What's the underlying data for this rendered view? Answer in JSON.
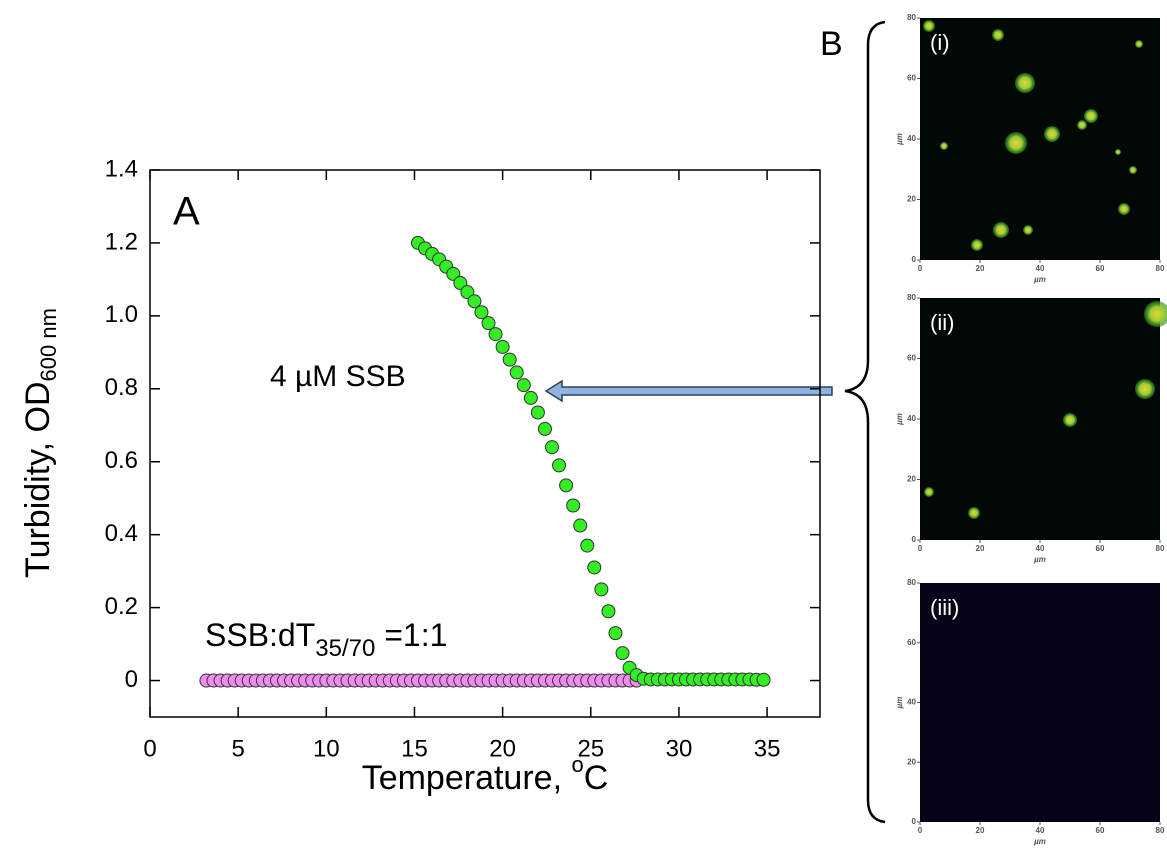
{
  "chart_data": [
    {
      "type": "scatter",
      "panel_label": "A",
      "xlabel": {
        "text": "Temperature, ",
        "sup": "o",
        "unit": "C"
      },
      "ylabel": {
        "text": "Turbidity, OD",
        "sub": "600 nm"
      },
      "annotations": [
        {
          "text": "4 µM SSB"
        },
        {
          "text": "SSB:dT",
          "sub": "35/70",
          "tail": " =1:1"
        }
      ],
      "xlim": [
        0,
        38
      ],
      "ylim": [
        -0.1,
        1.4
      ],
      "xticks": [
        0,
        5,
        10,
        15,
        20,
        25,
        30,
        35
      ],
      "yticks": [
        {
          "value": 0,
          "label": "0"
        },
        {
          "value": 0.2,
          "label": "0.2"
        },
        {
          "value": 0.4,
          "label": "0.4"
        },
        {
          "value": 0.6,
          "label": "0.6"
        },
        {
          "value": 0.8,
          "label": "0.8"
        },
        {
          "value": 1.0,
          "label": "1.0"
        },
        {
          "value": 1.2,
          "label": "1.2"
        },
        {
          "value": 1.4,
          "label": "1.4"
        }
      ],
      "series": [
        {
          "color": "#f08cf0",
          "x": [
            3.2,
            3.6,
            4.0,
            4.4,
            4.8,
            5.2,
            5.6,
            6.0,
            6.4,
            6.8,
            7.2,
            7.6,
            8.0,
            8.4,
            8.8,
            9.2,
            9.6,
            10.0,
            10.4,
            10.8,
            11.2,
            11.6,
            12.0,
            12.4,
            12.8,
            13.2,
            13.6,
            14.0,
            14.4,
            14.8,
            15.2,
            15.6,
            16.0,
            16.4,
            16.8,
            17.2,
            17.6,
            18.0,
            18.4,
            18.8,
            19.2,
            19.6,
            20.0,
            20.4,
            20.8,
            21.2,
            21.6,
            22.0,
            22.4,
            22.8,
            23.2,
            23.6,
            24.0,
            24.4,
            24.8,
            25.2,
            25.6,
            26.0,
            26.4,
            26.8,
            27.2,
            27.6
          ],
          "values": [
            0,
            0,
            0,
            0,
            0,
            0,
            0,
            0,
            0,
            0,
            0,
            0,
            0,
            0,
            0,
            0,
            0,
            0,
            0,
            0,
            0,
            0,
            0,
            0,
            0,
            0,
            0,
            0,
            0,
            0,
            0,
            0,
            0,
            0,
            0,
            0,
            0,
            0,
            0,
            0,
            0,
            0,
            0,
            0,
            0,
            0,
            0,
            0,
            0,
            0,
            0,
            0,
            0,
            0,
            0,
            0,
            0,
            0,
            0,
            0,
            0,
            0
          ]
        },
        {
          "color": "#33ee22",
          "x": [
            15.2,
            15.6,
            16.0,
            16.4,
            16.8,
            17.2,
            17.6,
            18.0,
            18.4,
            18.8,
            19.2,
            19.6,
            20.0,
            20.4,
            20.8,
            21.2,
            21.6,
            22.0,
            22.4,
            22.8,
            23.2,
            23.6,
            24.0,
            24.4,
            24.8,
            25.2,
            25.6,
            26.0,
            26.4,
            26.8,
            27.2,
            27.6,
            28.0,
            28.4,
            28.8,
            29.2,
            29.6,
            30.0,
            30.4,
            30.8,
            31.2,
            31.6,
            32.0,
            32.4,
            32.8,
            33.2,
            33.6,
            34.0,
            34.4,
            34.8
          ],
          "values": [
            1.2,
            1.185,
            1.17,
            1.155,
            1.135,
            1.115,
            1.09,
            1.065,
            1.04,
            1.01,
            0.98,
            0.95,
            0.915,
            0.88,
            0.845,
            0.81,
            0.775,
            0.735,
            0.69,
            0.64,
            0.59,
            0.535,
            0.48,
            0.425,
            0.37,
            0.31,
            0.25,
            0.19,
            0.13,
            0.075,
            0.035,
            0.015,
            0.005,
            0.003,
            0.003,
            0.003,
            0.003,
            0.003,
            0.003,
            0.003,
            0.003,
            0.003,
            0.003,
            0.003,
            0.003,
            0.003,
            0.003,
            0.003,
            0.002,
            0.002
          ]
        }
      ]
    },
    {
      "type": "image",
      "panel_label": "B",
      "label": "(i)",
      "xlabel": "µm",
      "ylabel": "µm",
      "xlim": [
        0,
        80
      ],
      "ylim": [
        0,
        80
      ],
      "xticks": [
        0,
        20,
        40,
        60,
        80
      ],
      "yticks": [
        0,
        20,
        40,
        60,
        80
      ]
    },
    {
      "type": "image",
      "label": "(ii)",
      "xlabel": "µm",
      "ylabel": "µm",
      "xlim": [
        0,
        80
      ],
      "ylim": [
        0,
        80
      ],
      "xticks": [
        0,
        20,
        40,
        60,
        80
      ],
      "yticks": [
        0,
        20,
        40,
        60,
        80
      ]
    },
    {
      "type": "image",
      "label": "(iii)",
      "xlabel": "µm",
      "ylabel": "µm",
      "xlim": [
        0,
        80
      ],
      "ylim": [
        0,
        80
      ],
      "xticks": [
        0,
        20,
        40,
        60,
        80
      ],
      "yticks": [
        0,
        20,
        40,
        60,
        80
      ]
    }
  ]
}
